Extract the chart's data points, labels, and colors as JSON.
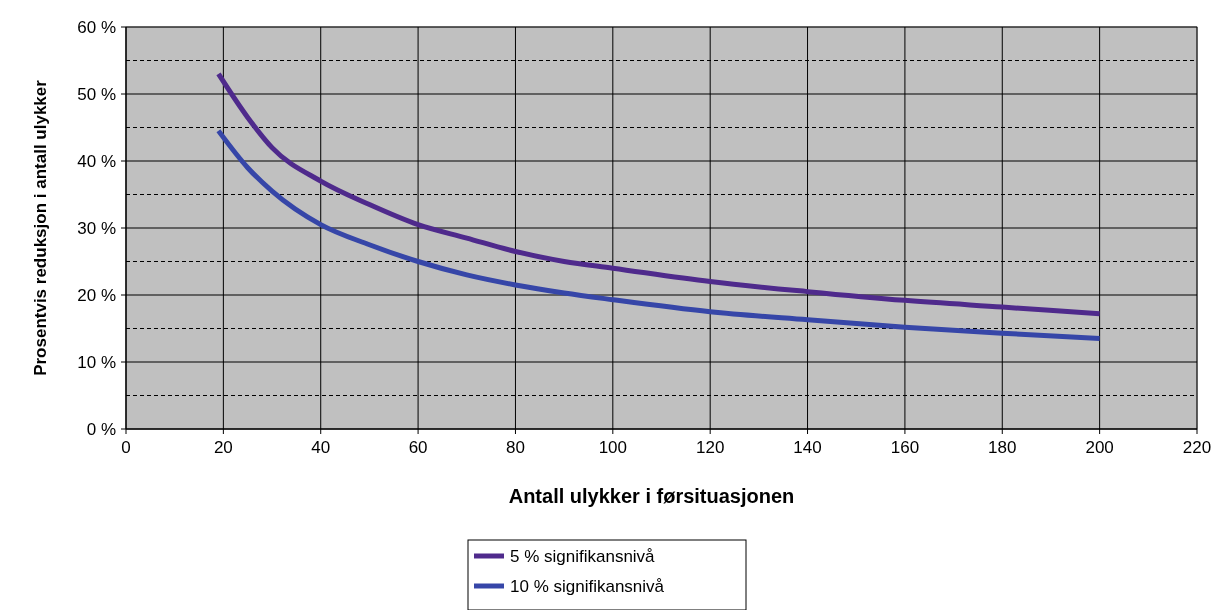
{
  "chart_data": {
    "type": "line",
    "xlabel": "Antall ulykker i førsituasjonen",
    "ylabel": "Prosentvis reduksjon i antall ulykker",
    "xlim": [
      0,
      220
    ],
    "xticks": [
      0,
      20,
      40,
      60,
      80,
      100,
      120,
      140,
      160,
      180,
      200,
      220
    ],
    "ylim": [
      0,
      60
    ],
    "yticks": [
      {
        "value": 0,
        "label": "0 %"
      },
      {
        "value": 5,
        "label": null
      },
      {
        "value": 10,
        "label": "10 %"
      },
      {
        "value": 15,
        "label": null
      },
      {
        "value": 20,
        "label": "20 %"
      },
      {
        "value": 25,
        "label": null
      },
      {
        "value": 30,
        "label": "30 %"
      },
      {
        "value": 35,
        "label": null
      },
      {
        "value": 40,
        "label": "40 %"
      },
      {
        "value": 45,
        "label": null
      },
      {
        "value": 50,
        "label": "50 %"
      },
      {
        "value": 55,
        "label": null
      },
      {
        "value": 60,
        "label": "60 %"
      }
    ],
    "grid": true,
    "legend": "bottom",
    "marker": "none",
    "line_style": "solid",
    "series": [
      {
        "name": "5 % signifikansnivå",
        "color": "#4f2a8c",
        "x": [
          19,
          25,
          30,
          40,
          50,
          60,
          70,
          80,
          90,
          100,
          120,
          140,
          160,
          180,
          200
        ],
        "values": [
          53,
          46.5,
          42,
          37,
          33.5,
          30.5,
          28.5,
          26.5,
          25,
          24,
          22,
          20.5,
          19.2,
          18.2,
          17.2
        ]
      },
      {
        "name": "10 % signifikansnivå",
        "color": "#3646a8",
        "x": [
          19,
          25,
          30,
          40,
          50,
          60,
          70,
          80,
          90,
          100,
          120,
          140,
          160,
          180,
          200
        ],
        "values": [
          44.5,
          39,
          35.5,
          30.5,
          27.5,
          25,
          23,
          21.5,
          20.3,
          19.3,
          17.5,
          16.3,
          15.2,
          14.3,
          13.5
        ]
      }
    ]
  }
}
